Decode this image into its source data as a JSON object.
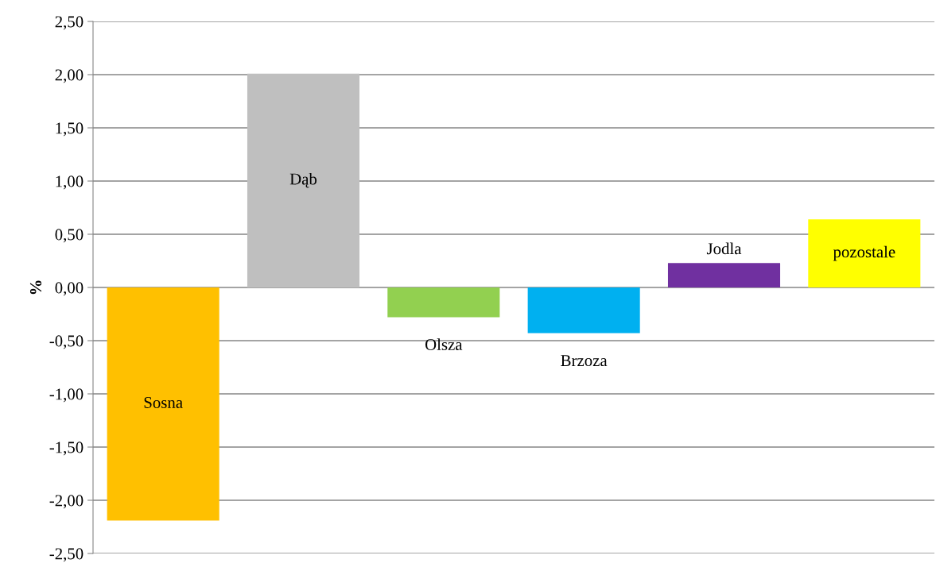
{
  "chart_data": {
    "type": "bar",
    "ylabel": "%",
    "categories": [
      "Sosna",
      "Dąb",
      "Olsza",
      "Brzoza",
      "Jodla",
      "pozostale"
    ],
    "values": [
      -2.19,
      2.01,
      -0.28,
      -0.43,
      0.23,
      0.64
    ],
    "colors": [
      "#ffc000",
      "#bfbfbf",
      "#92d050",
      "#00b0f0",
      "#7030a0",
      "#ffff00"
    ],
    "ylim": [
      -2.5,
      2.5
    ],
    "yticks": [
      {
        "value": -2.5,
        "label": "-2,50"
      },
      {
        "value": -2.0,
        "label": "-2,00"
      },
      {
        "value": -1.5,
        "label": "-1,50"
      },
      {
        "value": -1.0,
        "label": "-1,00"
      },
      {
        "value": -0.5,
        "label": "-0,50"
      },
      {
        "value": 0.0,
        "label": "0,00"
      },
      {
        "value": 0.5,
        "label": "0,50"
      },
      {
        "value": 1.0,
        "label": "1,00"
      },
      {
        "value": 1.5,
        "label": "1,50"
      },
      {
        "value": 2.0,
        "label": "2,00"
      },
      {
        "value": 2.5,
        "label": "2,50"
      }
    ],
    "grid": "y",
    "tick_labels": "y"
  }
}
